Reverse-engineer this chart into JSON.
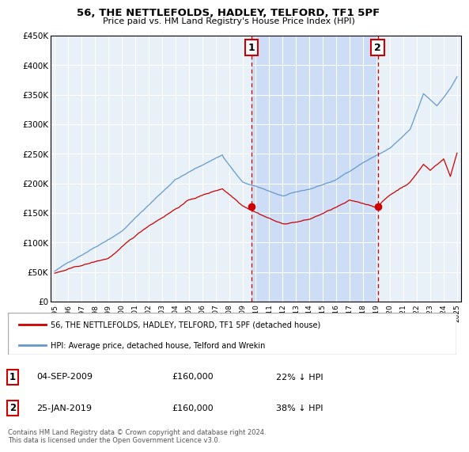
{
  "title": "56, THE NETTLEFOLDS, HADLEY, TELFORD, TF1 5PF",
  "subtitle": "Price paid vs. HM Land Registry's House Price Index (HPI)",
  "legend_line1": "56, THE NETTLEFOLDS, HADLEY, TELFORD, TF1 5PF (detached house)",
  "legend_line2": "HPI: Average price, detached house, Telford and Wrekin",
  "footer": "Contains HM Land Registry data © Crown copyright and database right 2024.\nThis data is licensed under the Open Government Licence v3.0.",
  "transaction1_date": "04-SEP-2009",
  "transaction1_price": "£160,000",
  "transaction1_hpi": "22% ↓ HPI",
  "transaction2_date": "25-JAN-2019",
  "transaction2_price": "£160,000",
  "transaction2_hpi": "38% ↓ HPI",
  "red_color": "#cc0000",
  "blue_color": "#6699cc",
  "blue_fill_color": "#ddeeff",
  "highlight_fill_color": "#ccddf5",
  "background_color": "#ffffff",
  "plot_bg_color": "#e8f0f8",
  "grid_color": "#ffffff",
  "marker1_x": 2009.67,
  "marker2_x": 2019.08,
  "marker1_y": 160000,
  "marker2_y": 160000,
  "ylim": [
    0,
    450000
  ],
  "xlim": [
    1994.7,
    2025.3
  ],
  "yticks": [
    0,
    50000,
    100000,
    150000,
    200000,
    250000,
    300000,
    350000,
    400000,
    450000
  ],
  "ytick_labels": [
    "£0",
    "£50K",
    "£100K",
    "£150K",
    "£200K",
    "£250K",
    "£300K",
    "£350K",
    "£400K",
    "£450K"
  ],
  "xticks": [
    1995,
    1996,
    1997,
    1998,
    1999,
    2000,
    2001,
    2002,
    2003,
    2004,
    2005,
    2006,
    2007,
    2008,
    2009,
    2010,
    2011,
    2012,
    2013,
    2014,
    2015,
    2016,
    2017,
    2018,
    2019,
    2020,
    2021,
    2022,
    2023,
    2024,
    2025
  ]
}
